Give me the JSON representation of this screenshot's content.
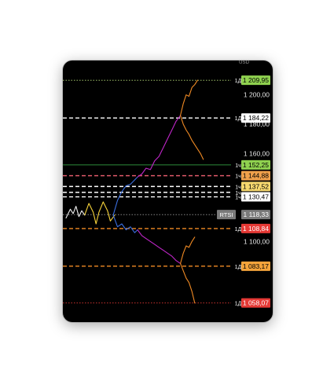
{
  "chart_data": {
    "type": "line",
    "title": "",
    "ylabel": "",
    "xlabel": "",
    "currency_label": "USD",
    "ylim": [
      1052,
      1217
    ],
    "grid": false,
    "axis_ticks": [
      {
        "value": 1200,
        "label": "1 200,00"
      },
      {
        "value": 1180,
        "label": "1 180,00"
      },
      {
        "value": 1160,
        "label": "1 160,00"
      },
      {
        "value": 1100,
        "label": "1 100,00"
      }
    ],
    "levels": [
      {
        "value": 1209.95,
        "label": "1 209,95",
        "tag": "1Д",
        "line_color": "#b9e07a",
        "style": "dotted",
        "badge_bg": "#8fd14f",
        "badge_fg": "#000000"
      },
      {
        "value": 1184.22,
        "label": "1 184,22",
        "tag": "1Д",
        "line_color": "#ffffff",
        "style": "dashed",
        "badge_bg": "#ffffff",
        "badge_fg": "#000000"
      },
      {
        "value": 1152.25,
        "label": "1 152,25",
        "tag": "1ч",
        "line_color": "#2e8b3a",
        "style": "solid",
        "badge_bg": "#8fd14f",
        "badge_fg": "#000000"
      },
      {
        "value": 1144.88,
        "label": "1 144,88",
        "tag": "1ч",
        "line_color": "#e05a6a",
        "style": "dashed",
        "badge_bg": "#f0a04b",
        "badge_fg": "#000000"
      },
      {
        "value": 1137.52,
        "label": "1 137,52",
        "tag": "1ч",
        "line_color": "#ffffff",
        "style": "dashed",
        "badge_bg": "#f5d76e",
        "badge_fg": "#000000"
      },
      {
        "value": 1133.5,
        "label": "",
        "tag": "1ч",
        "line_color": "#ffffff",
        "style": "dashed",
        "badge_bg": "",
        "badge_fg": ""
      },
      {
        "value": 1130.47,
        "label": "1 130,47",
        "tag": "1ч",
        "line_color": "#ffffff",
        "style": "dashed",
        "badge_bg": "#ffffff",
        "badge_fg": "#000000"
      },
      {
        "value": 1118.33,
        "label": "1 118,33",
        "tag": "RTSI",
        "line_color": "#9a9a9a",
        "style": "dotted",
        "badge_bg": "#7a7a7a",
        "badge_fg": "#ffffff"
      },
      {
        "value": 1108.84,
        "label": "1 108,84",
        "tag": "1Д",
        "line_color": "#f08a24",
        "style": "dashed",
        "badge_bg": "#e53935",
        "badge_fg": "#ffffff"
      },
      {
        "value": 1083.17,
        "label": "1 083,17",
        "tag": "1Д",
        "line_color": "#f08a24",
        "style": "dashed",
        "badge_bg": "#f5a43b",
        "badge_fg": "#000000"
      },
      {
        "value": 1058.07,
        "label": "1 058,07",
        "tag": "1Д",
        "line_color": "#e53935",
        "style": "dotted",
        "badge_bg": "#e53935",
        "badge_fg": "#ffffff"
      }
    ],
    "x_range": [
      0,
      100
    ],
    "series": [
      {
        "color": "#f0f0f0",
        "x": [
          0,
          3,
          5,
          7,
          9,
          11,
          13
        ],
        "y": [
          1116,
          1122,
          1119,
          1124,
          1117,
          1121,
          1118
        ]
      },
      {
        "color": "#f5d23a",
        "x": [
          13,
          16,
          19,
          21,
          23,
          26,
          29,
          31,
          34
        ],
        "y": [
          1118,
          1126,
          1120,
          1112,
          1120,
          1127,
          1121,
          1114,
          1118
        ]
      },
      {
        "color": "#3b6fe0",
        "x": [
          33,
          36,
          39,
          42,
          45,
          48,
          50
        ],
        "y": [
          1118,
          1128,
          1134,
          1138,
          1139,
          1142,
          1144
        ]
      },
      {
        "color": "#3b6fe0",
        "x": [
          33,
          36,
          39,
          42,
          45,
          48,
          50
        ],
        "y": [
          1118,
          1110,
          1112,
          1108,
          1110,
          1106,
          1108
        ]
      },
      {
        "color": "#c026c9",
        "x": [
          50,
          53,
          56,
          59,
          62,
          65,
          68,
          71,
          74,
          77,
          80
        ],
        "y": [
          1144,
          1146,
          1150,
          1149,
          1155,
          1158,
          1164,
          1170,
          1176,
          1182,
          1186
        ]
      },
      {
        "color": "#c026c9",
        "x": [
          50,
          53,
          56,
          59,
          62,
          65,
          68,
          71,
          74,
          77,
          80
        ],
        "y": [
          1108,
          1104,
          1102,
          1100,
          1098,
          1096,
          1094,
          1092,
          1090,
          1087,
          1085
        ]
      },
      {
        "color": "#f08a24",
        "x": [
          80,
          82,
          84,
          86,
          88,
          90,
          92
        ],
        "y": [
          1186,
          1194,
          1200,
          1199,
          1205,
          1207,
          1210
        ]
      },
      {
        "color": "#f08a24",
        "x": [
          80,
          82,
          84,
          86,
          88,
          90,
          92,
          94,
          96
        ],
        "y": [
          1186,
          1180,
          1176,
          1173,
          1169,
          1166,
          1163,
          1160,
          1156
        ]
      },
      {
        "color": "#f08a24",
        "x": [
          80,
          82,
          84,
          86,
          88,
          90
        ],
        "y": [
          1085,
          1092,
          1097,
          1096,
          1100,
          1103
        ]
      },
      {
        "color": "#f08a24",
        "x": [
          80,
          82,
          84,
          86,
          88,
          90
        ],
        "y": [
          1085,
          1080,
          1075,
          1072,
          1066,
          1058
        ]
      }
    ]
  }
}
